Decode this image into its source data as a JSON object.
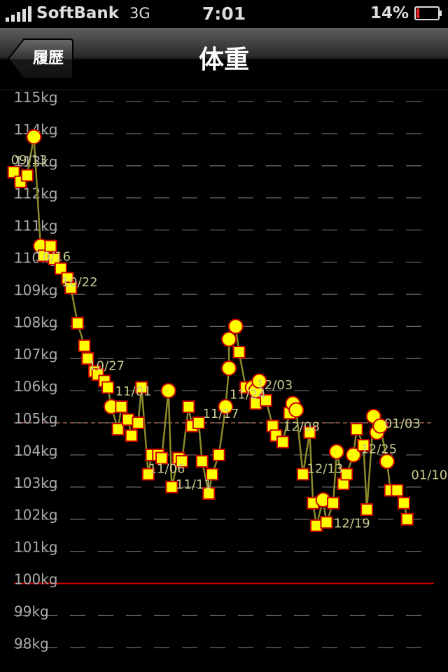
{
  "status_bar": {
    "carrier": "SoftBank",
    "network": "3G",
    "time": "7:01",
    "battery_percent": "14%",
    "battery_level": 0.14,
    "icons": [
      "signal-bars-icon",
      "battery-icon"
    ]
  },
  "nav": {
    "back_label": "履歴",
    "title": "体重"
  },
  "colors": {
    "background": "#000000",
    "axis_text": "#aaaaaa",
    "grid": "#666666",
    "marker_fill": "#ffff00",
    "marker_stroke": "#cc0000",
    "line": "#8a8a2a",
    "label": "#c8c890",
    "target_line": "#cc0000",
    "reference_line": "#a06050"
  },
  "chart_data": {
    "type": "line",
    "title": "体重",
    "ylabel": "kg",
    "ylim": [
      97.9,
      115.2
    ],
    "xlim": [
      0,
      128
    ],
    "y_ticks": [
      "115kg",
      "114kg",
      "113kg",
      "112kg",
      "111kg",
      "110kg",
      "109kg",
      "108kg",
      "107kg",
      "106kg",
      "105kg",
      "104kg",
      "103kg",
      "102kg",
      "101kg",
      "100kg",
      "99kg",
      "98kg"
    ],
    "y_tick_values": [
      115,
      114,
      113,
      112,
      111,
      110,
      109,
      108,
      107,
      106,
      105,
      104,
      103,
      102,
      101,
      100,
      99,
      98
    ],
    "target_line": 100,
    "reference_line": 105,
    "date_labels": [
      {
        "text": "09/13",
        "day": 2,
        "value": 113.2
      },
      {
        "text": "10/16",
        "day": 9,
        "value": 110.2
      },
      {
        "text": "10/22",
        "day": 17,
        "value": 109.4
      },
      {
        "text": "10/27",
        "day": 25,
        "value": 106.8
      },
      {
        "text": "11/01",
        "day": 33,
        "value": 106.0
      },
      {
        "text": "11/06",
        "day": 43,
        "value": 103.6
      },
      {
        "text": "11/11",
        "day": 51,
        "value": 103.1
      },
      {
        "text": "11/17",
        "day": 59,
        "value": 105.3
      },
      {
        "text": "11/24",
        "day": 67,
        "value": 105.9
      },
      {
        "text": "12/03",
        "day": 75,
        "value": 106.2
      },
      {
        "text": "12/08",
        "day": 83,
        "value": 104.9
      },
      {
        "text": "12/13",
        "day": 90,
        "value": 103.6
      },
      {
        "text": "12/19",
        "day": 98,
        "value": 101.9
      },
      {
        "text": "12/25",
        "day": 106,
        "value": 104.2
      },
      {
        "text": "01/03",
        "day": 113,
        "value": 105.0
      },
      {
        "text": "01/10",
        "day": 121,
        "value": 103.4
      }
    ],
    "series": [
      {
        "name": "体重",
        "points": [
          {
            "day": 2,
            "value": 112.8,
            "marker": "square"
          },
          {
            "day": 4,
            "value": 112.5,
            "marker": "square"
          },
          {
            "day": 6,
            "value": 112.7,
            "marker": "square"
          },
          {
            "day": 8,
            "value": 113.9,
            "marker": "circle"
          },
          {
            "day": 10,
            "value": 110.5,
            "marker": "circle"
          },
          {
            "day": 11,
            "value": 110.2,
            "marker": "square"
          },
          {
            "day": 13,
            "value": 110.5,
            "marker": "square"
          },
          {
            "day": 14,
            "value": 110.1,
            "marker": "square"
          },
          {
            "day": 16,
            "value": 109.8,
            "marker": "square"
          },
          {
            "day": 18,
            "value": 109.5,
            "marker": "square"
          },
          {
            "day": 19,
            "value": 109.2,
            "marker": "square"
          },
          {
            "day": 21,
            "value": 108.1,
            "marker": "square"
          },
          {
            "day": 23,
            "value": 107.4,
            "marker": "square"
          },
          {
            "day": 24,
            "value": 107.0,
            "marker": "square"
          },
          {
            "day": 26,
            "value": 106.6,
            "marker": "square"
          },
          {
            "day": 27,
            "value": 106.5,
            "marker": "square"
          },
          {
            "day": 29,
            "value": 106.3,
            "marker": "square"
          },
          {
            "day": 30,
            "value": 106.1,
            "marker": "square"
          },
          {
            "day": 31,
            "value": 105.5,
            "marker": "circle"
          },
          {
            "day": 33,
            "value": 104.8,
            "marker": "square"
          },
          {
            "day": 34,
            "value": 105.5,
            "marker": "square"
          },
          {
            "day": 36,
            "value": 105.1,
            "marker": "square"
          },
          {
            "day": 37,
            "value": 104.6,
            "marker": "square"
          },
          {
            "day": 39,
            "value": 105.0,
            "marker": "square"
          },
          {
            "day": 40,
            "value": 106.1,
            "marker": "square"
          },
          {
            "day": 42,
            "value": 103.4,
            "marker": "square"
          },
          {
            "day": 43,
            "value": 104.0,
            "marker": "square"
          },
          {
            "day": 45,
            "value": 104.0,
            "marker": "square"
          },
          {
            "day": 46,
            "value": 103.9,
            "marker": "square"
          },
          {
            "day": 48,
            "value": 106.0,
            "marker": "circle"
          },
          {
            "day": 49,
            "value": 103.0,
            "marker": "square"
          },
          {
            "day": 51,
            "value": 103.9,
            "marker": "square"
          },
          {
            "day": 52,
            "value": 103.8,
            "marker": "square"
          },
          {
            "day": 54,
            "value": 105.5,
            "marker": "square"
          },
          {
            "day": 55,
            "value": 104.9,
            "marker": "square"
          },
          {
            "day": 57,
            "value": 105.0,
            "marker": "square"
          },
          {
            "day": 58,
            "value": 103.8,
            "marker": "square"
          },
          {
            "day": 60,
            "value": 102.8,
            "marker": "square"
          },
          {
            "day": 61,
            "value": 103.4,
            "marker": "square"
          },
          {
            "day": 63,
            "value": 104.0,
            "marker": "square"
          },
          {
            "day": 65,
            "value": 105.5,
            "marker": "circle"
          },
          {
            "day": 66,
            "value": 106.7,
            "marker": "circle"
          },
          {
            "day": 66,
            "value": 107.6,
            "marker": "circle"
          },
          {
            "day": 68,
            "value": 108.0,
            "marker": "circle"
          },
          {
            "day": 69,
            "value": 107.2,
            "marker": "square"
          },
          {
            "day": 71,
            "value": 106.1,
            "marker": "square"
          },
          {
            "day": 73,
            "value": 106.1,
            "marker": "circle"
          },
          {
            "day": 74,
            "value": 106.0,
            "marker": "circle"
          },
          {
            "day": 74,
            "value": 105.6,
            "marker": "square"
          },
          {
            "day": 75,
            "value": 106.3,
            "marker": "circle"
          },
          {
            "day": 77,
            "value": 105.7,
            "marker": "square"
          },
          {
            "day": 79,
            "value": 104.9,
            "marker": "square"
          },
          {
            "day": 80,
            "value": 104.6,
            "marker": "square"
          },
          {
            "day": 82,
            "value": 104.4,
            "marker": "square"
          },
          {
            "day": 84,
            "value": 105.3,
            "marker": "square"
          },
          {
            "day": 85,
            "value": 105.6,
            "marker": "circle"
          },
          {
            "day": 86,
            "value": 105.4,
            "marker": "circle"
          },
          {
            "day": 88,
            "value": 103.4,
            "marker": "square"
          },
          {
            "day": 90,
            "value": 104.7,
            "marker": "square"
          },
          {
            "day": 91,
            "value": 102.5,
            "marker": "square"
          },
          {
            "day": 92,
            "value": 101.8,
            "marker": "square"
          },
          {
            "day": 94,
            "value": 102.6,
            "marker": "circle"
          },
          {
            "day": 95,
            "value": 101.9,
            "marker": "square"
          },
          {
            "day": 97,
            "value": 102.5,
            "marker": "square"
          },
          {
            "day": 98,
            "value": 104.1,
            "marker": "circle"
          },
          {
            "day": 100,
            "value": 103.1,
            "marker": "square"
          },
          {
            "day": 101,
            "value": 103.4,
            "marker": "square"
          },
          {
            "day": 103,
            "value": 104.0,
            "marker": "circle"
          },
          {
            "day": 104,
            "value": 104.8,
            "marker": "square"
          },
          {
            "day": 106,
            "value": 104.3,
            "marker": "square"
          },
          {
            "day": 107,
            "value": 102.3,
            "marker": "square"
          },
          {
            "day": 109,
            "value": 105.2,
            "marker": "circle"
          },
          {
            "day": 110,
            "value": 104.7,
            "marker": "circle"
          },
          {
            "day": 111,
            "value": 104.9,
            "marker": "circle"
          },
          {
            "day": 113,
            "value": 103.8,
            "marker": "circle"
          },
          {
            "day": 114,
            "value": 102.9,
            "marker": "square"
          },
          {
            "day": 116,
            "value": 102.9,
            "marker": "square"
          },
          {
            "day": 118,
            "value": 102.5,
            "marker": "square"
          },
          {
            "day": 119,
            "value": 102.0,
            "marker": "square"
          }
        ]
      }
    ]
  }
}
